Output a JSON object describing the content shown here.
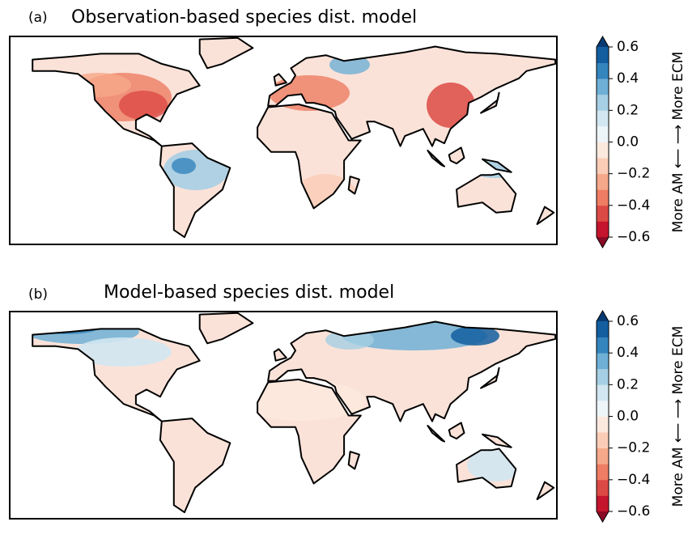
{
  "panels": [
    {
      "label": "(a)",
      "title": "Observation-based species dist. model",
      "colorbar": {
        "label": "More AM ⟵  ⟶ More ECM",
        "lim": [
          -0.6,
          0.6
        ],
        "ticks": [
          {
            "value": -0.6,
            "label": "−0.6"
          },
          {
            "value": -0.4,
            "label": "−0.4"
          },
          {
            "value": -0.2,
            "label": "−0.2"
          },
          {
            "value": 0,
            "label": "0.0"
          },
          0.2,
          0.4,
          0.6
        ],
        "colors": [
          "#c4152d",
          "#dc4a45",
          "#ee7d63",
          "#f6a98a",
          "#fbcdb7",
          "#fce9de",
          "#eef5f8",
          "#d2e7f1",
          "#a6cfe4",
          "#6fb0d6",
          "#3485bd",
          "#135e9f"
        ],
        "under_color": "#8b0a25",
        "over_color": "#083a72"
      }
    },
    {
      "label": "(b)",
      "title": "Model-based species dist. model",
      "colorbar": {
        "label": "More AM ⟵  ⟶ More ECM",
        "lim": [
          -0.6,
          0.6
        ],
        "ticks": [
          {
            "value": -0.6,
            "label": "−0.6"
          },
          {
            "value": -0.4,
            "label": "−0.4"
          },
          {
            "value": -0.2,
            "label": "−0.2"
          },
          {
            "value": 0,
            "label": "0.0"
          },
          0.2,
          0.4,
          0.6
        ],
        "colors": [
          "#c4152d",
          "#dc4a45",
          "#ee7d63",
          "#f6a98a",
          "#fbcdb7",
          "#fce9de",
          "#eef5f8",
          "#d2e7f1",
          "#a6cfe4",
          "#6fb0d6",
          "#3485bd",
          "#135e9f"
        ],
        "under_color": "#8b0a25",
        "over_color": "#083a72"
      }
    }
  ]
}
